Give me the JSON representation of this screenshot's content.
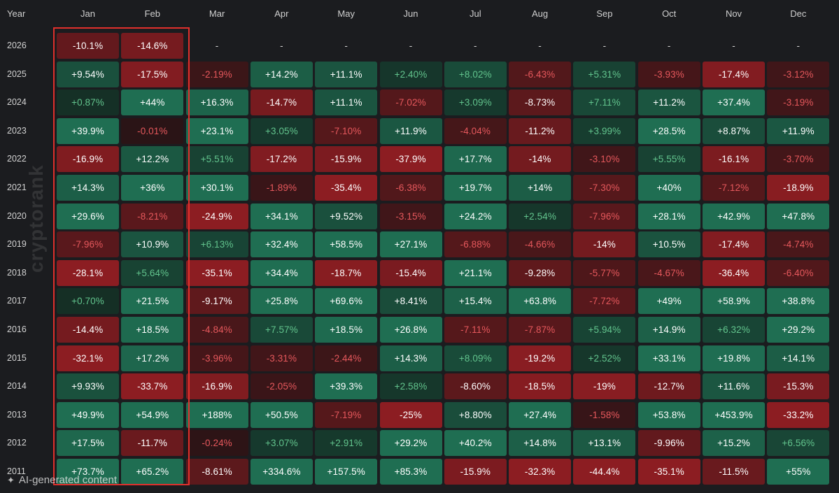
{
  "ai_badge": {
    "text": "AI-generated content",
    "icon": "sparkle-icon"
  },
  "watermark": "cryptorank",
  "chart_data": {
    "type": "heatmap",
    "title": "",
    "corner_label": "Year",
    "columns": [
      "Jan",
      "Feb",
      "Mar",
      "Apr",
      "May",
      "Jun",
      "Jul",
      "Aug",
      "Sep",
      "Oct",
      "Nov",
      "Dec"
    ],
    "highlighted_columns": [
      "Jan",
      "Feb"
    ],
    "colors": {
      "positive_strong": "#1f6e52",
      "positive_weak": "#142a22",
      "negative_strong": "#8c1d22",
      "negative_weak": "#2a1416",
      "positive_text_light": "#ffffff",
      "positive_text_dim": "#62c48d",
      "negative_text_dim": "#e6585c",
      "highlight_border": "#e0302c"
    },
    "rows": [
      {
        "year": "2026",
        "values": [
          "-10.1%",
          "-14.6%",
          "-",
          "-",
          "-",
          "-",
          "-",
          "-",
          "-",
          "-",
          "-",
          "-"
        ]
      },
      {
        "year": "2025",
        "values": [
          "+9.54%",
          "-17.5%",
          "-2.19%",
          "+14.2%",
          "+11.1%",
          "+2.40%",
          "+8.02%",
          "-6.43%",
          "+5.31%",
          "-3.93%",
          "-17.4%",
          "-3.12%"
        ]
      },
      {
        "year": "2024",
        "values": [
          "+0.87%",
          "+44%",
          "+16.3%",
          "-14.7%",
          "+11.1%",
          "-7.02%",
          "+3.09%",
          "-8.73%",
          "+7.11%",
          "+11.2%",
          "+37.4%",
          "-3.19%"
        ]
      },
      {
        "year": "2023",
        "values": [
          "+39.9%",
          "-0.01%",
          "+23.1%",
          "+3.05%",
          "-7.10%",
          "+11.9%",
          "-4.04%",
          "-11.2%",
          "+3.99%",
          "+28.5%",
          "+8.87%",
          "+11.9%"
        ]
      },
      {
        "year": "2022",
        "values": [
          "-16.9%",
          "+12.2%",
          "+5.51%",
          "-17.2%",
          "-15.9%",
          "-37.9%",
          "+17.7%",
          "-14%",
          "-3.10%",
          "+5.55%",
          "-16.1%",
          "-3.70%"
        ]
      },
      {
        "year": "2021",
        "values": [
          "+14.3%",
          "+36%",
          "+30.1%",
          "-1.89%",
          "-35.4%",
          "-6.38%",
          "+19.7%",
          "+14%",
          "-7.30%",
          "+40%",
          "-7.12%",
          "-18.9%"
        ]
      },
      {
        "year": "2020",
        "values": [
          "+29.6%",
          "-8.21%",
          "-24.9%",
          "+34.1%",
          "+9.52%",
          "-3.15%",
          "+24.2%",
          "+2.54%",
          "-7.96%",
          "+28.1%",
          "+42.9%",
          "+47.8%"
        ]
      },
      {
        "year": "2019",
        "values": [
          "-7.96%",
          "+10.9%",
          "+6.13%",
          "+32.4%",
          "+58.5%",
          "+27.1%",
          "-6.88%",
          "-4.66%",
          "-14%",
          "+10.5%",
          "-17.4%",
          "-4.74%"
        ]
      },
      {
        "year": "2018",
        "values": [
          "-28.1%",
          "+5.64%",
          "-35.1%",
          "+34.4%",
          "-18.7%",
          "-15.4%",
          "+21.1%",
          "-9.28%",
          "-5.77%",
          "-4.67%",
          "-36.4%",
          "-6.40%"
        ]
      },
      {
        "year": "2017",
        "values": [
          "+0.70%",
          "+21.5%",
          "-9.17%",
          "+25.8%",
          "+69.6%",
          "+8.41%",
          "+15.4%",
          "+63.8%",
          "-7.72%",
          "+49%",
          "+58.9%",
          "+38.8%"
        ]
      },
      {
        "year": "2016",
        "values": [
          "-14.4%",
          "+18.5%",
          "-4.84%",
          "+7.57%",
          "+18.5%",
          "+26.8%",
          "-7.11%",
          "-7.87%",
          "+5.94%",
          "+14.9%",
          "+6.32%",
          "+29.2%"
        ]
      },
      {
        "year": "2015",
        "values": [
          "-32.1%",
          "+17.2%",
          "-3.96%",
          "-3.31%",
          "-2.44%",
          "+14.3%",
          "+8.09%",
          "-19.2%",
          "+2.52%",
          "+33.1%",
          "+19.8%",
          "+14.1%"
        ]
      },
      {
        "year": "2014",
        "values": [
          "+9.93%",
          "-33.7%",
          "-16.9%",
          "-2.05%",
          "+39.3%",
          "+2.58%",
          "-8.60%",
          "-18.5%",
          "-19%",
          "-12.7%",
          "+11.6%",
          "-15.3%"
        ]
      },
      {
        "year": "2013",
        "values": [
          "+49.9%",
          "+54.9%",
          "+188%",
          "+50.5%",
          "-7.19%",
          "-25%",
          "+8.80%",
          "+27.4%",
          "-1.58%",
          "+53.8%",
          "+453.9%",
          "-33.2%"
        ]
      },
      {
        "year": "2012",
        "values": [
          "+17.5%",
          "-11.7%",
          "-0.24%",
          "+3.07%",
          "+2.91%",
          "+29.2%",
          "+40.2%",
          "+14.8%",
          "+13.1%",
          "-9.96%",
          "+15.2%",
          "+6.56%"
        ]
      },
      {
        "year": "2011",
        "values": [
          "+73.7%",
          "+65.2%",
          "-8.61%",
          "+334.6%",
          "+157.5%",
          "+85.3%",
          "-15.9%",
          "-32.3%",
          "-44.4%",
          "-35.1%",
          "-11.5%",
          "+55%"
        ]
      }
    ]
  }
}
